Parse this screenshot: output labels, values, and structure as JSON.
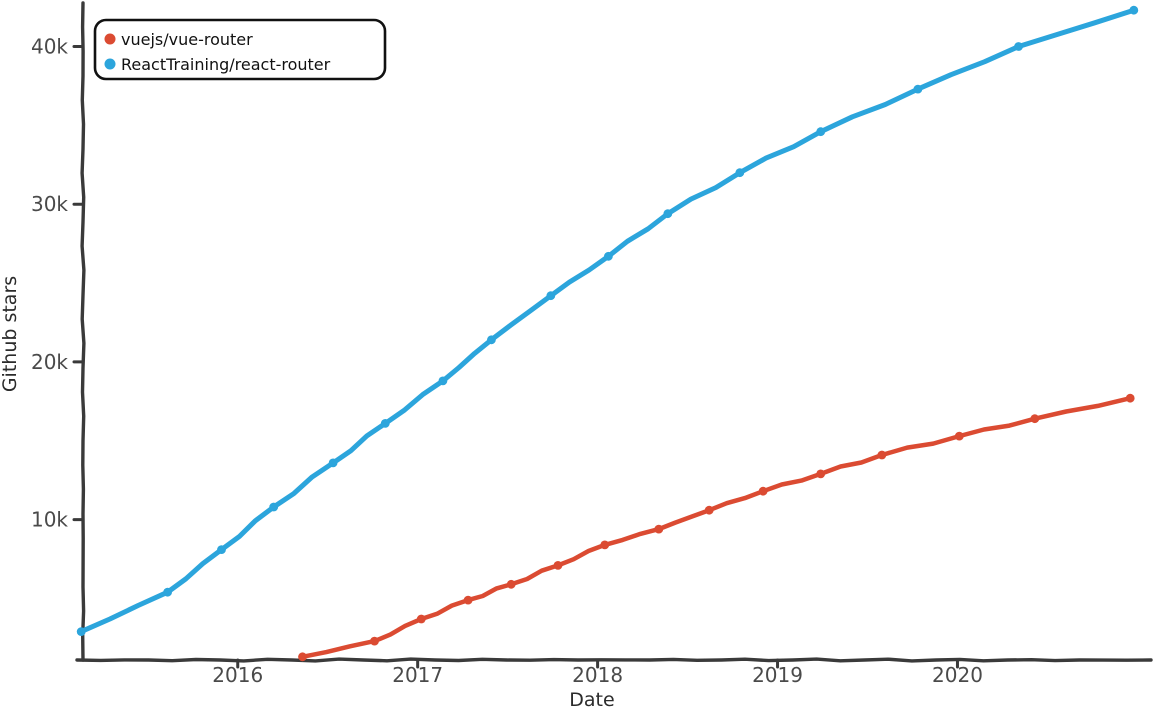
{
  "chart": {
    "title": "",
    "xlabel": "Date",
    "ylabel": "Github stars",
    "colors": {
      "axis": "#3a3a3a",
      "tick_text": "#4a4a4a",
      "legend_border": "#111111",
      "background": "#ffffff"
    }
  },
  "chart_data": {
    "type": "line",
    "title": "",
    "xlabel": "Date",
    "ylabel": "Github stars",
    "grid": false,
    "legend_position": "top-left",
    "xlim": [
      2015.14,
      2021.02
    ],
    "ylim": [
      1100,
      42600
    ],
    "x_ticks": [
      {
        "value": 2016,
        "label": "2016"
      },
      {
        "value": 2017,
        "label": "2017"
      },
      {
        "value": 2018,
        "label": "2018"
      },
      {
        "value": 2019,
        "label": "2019"
      },
      {
        "value": 2020,
        "label": "2020"
      }
    ],
    "y_ticks": [
      {
        "value": 10000,
        "label": "10k"
      },
      {
        "value": 20000,
        "label": "20k"
      },
      {
        "value": 30000,
        "label": "30k"
      },
      {
        "value": 40000,
        "label": "40k"
      }
    ],
    "series": [
      {
        "name": "vuejs/vue-router",
        "color": "#DB4B32",
        "dates": [
          "2016-05",
          "2016-10",
          "2017-01",
          "2017-04",
          "2017-07",
          "2017-10",
          "2018-01",
          "2018-05",
          "2018-08",
          "2018-12",
          "2019-03",
          "2019-08",
          "2020-01",
          "2020-06",
          "2020-12"
        ],
        "x": [
          2016.36,
          2016.76,
          2017.02,
          2017.28,
          2017.52,
          2017.78,
          2018.04,
          2018.34,
          2018.62,
          2018.92,
          2019.24,
          2019.58,
          2020.01,
          2020.43,
          2020.96
        ],
        "y": [
          1300,
          2300,
          3700,
          4900,
          5900,
          7100,
          8400,
          9400,
          10600,
          11800,
          12900,
          14100,
          15300,
          16400,
          17700
        ]
      },
      {
        "name": "ReactTraining/react-router",
        "color": "#2CA5DC",
        "dates": [
          "2015-02",
          "2015-08",
          "2015-12",
          "2016-03",
          "2016-07",
          "2016-10",
          "2017-02",
          "2017-05",
          "2017-09",
          "2018-01",
          "2018-05",
          "2018-10",
          "2019-03",
          "2019-10",
          "2020-05",
          "2020-12"
        ],
        "x": [
          2015.13,
          2015.61,
          2015.91,
          2016.2,
          2016.53,
          2016.82,
          2017.14,
          2017.41,
          2017.74,
          2018.06,
          2018.39,
          2018.79,
          2019.24,
          2019.78,
          2020.34,
          2020.98
        ],
        "y": [
          2900,
          5400,
          8100,
          10800,
          13600,
          16100,
          18800,
          21400,
          24200,
          26700,
          29400,
          32000,
          34600,
          37300,
          40000,
          42300
        ]
      }
    ]
  }
}
